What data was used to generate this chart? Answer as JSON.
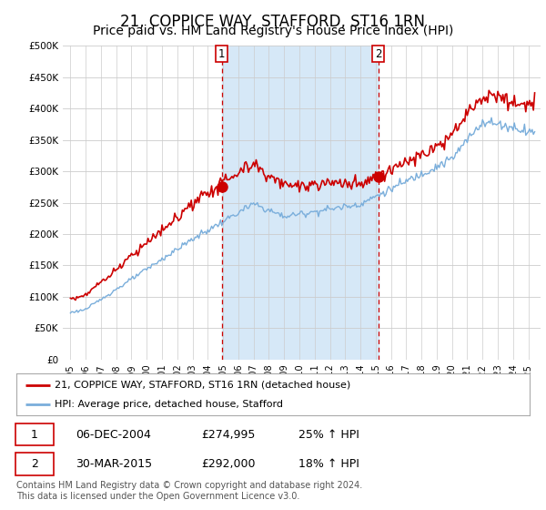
{
  "title": "21, COPPICE WAY, STAFFORD, ST16 1RN",
  "subtitle": "Price paid vs. HM Land Registry's House Price Index (HPI)",
  "legend_line1": "21, COPPICE WAY, STAFFORD, ST16 1RN (detached house)",
  "legend_line2": "HPI: Average price, detached house, Stafford",
  "sale1_price": 274995,
  "sale1_label": "06-DEC-2004",
  "sale1_pct": "25% ↑ HPI",
  "sale1_year": 2004,
  "sale1_month": 12,
  "sale2_price": 292000,
  "sale2_label": "30-MAR-2015",
  "sale2_pct": "18% ↑ HPI",
  "sale2_year": 2015,
  "sale2_month": 3,
  "footnote": "Contains HM Land Registry data © Crown copyright and database right 2024.\nThis data is licensed under the Open Government Licence v3.0.",
  "ylim": [
    0,
    500000
  ],
  "ytick_vals": [
    0,
    50000,
    100000,
    150000,
    200000,
    250000,
    300000,
    350000,
    400000,
    450000,
    500000
  ],
  "ytick_labels": [
    "£0",
    "£50K",
    "£100K",
    "£150K",
    "£200K",
    "£250K",
    "£300K",
    "£350K",
    "£400K",
    "£450K",
    "£500K"
  ],
  "xlim_start": 1994.5,
  "xlim_end": 2025.8,
  "chart_bg": "#ffffff",
  "fill_between_color": "#d6e8f7",
  "red_line_color": "#cc0000",
  "blue_line_color": "#7aaedb",
  "grid_color": "#cccccc",
  "vline_color": "#cc0000",
  "title_fontsize": 12,
  "subtitle_fontsize": 10
}
